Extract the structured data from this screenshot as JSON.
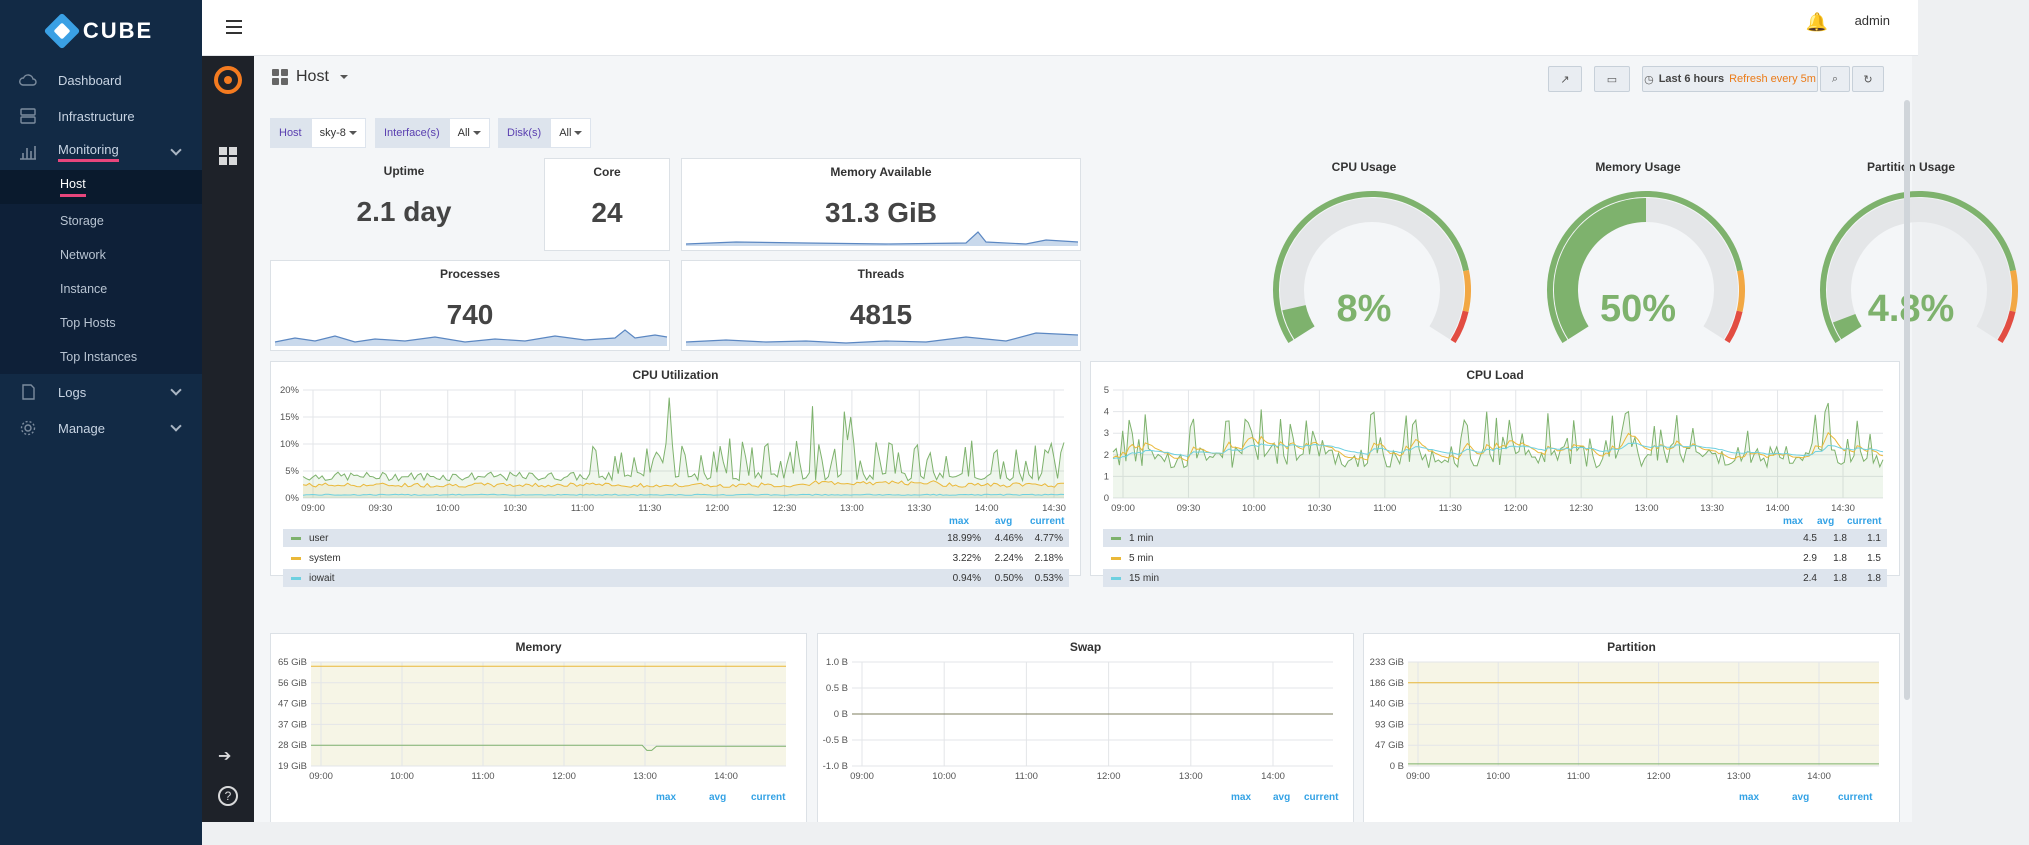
{
  "app": {
    "brand": "CUBE",
    "user": "admin"
  },
  "sidebar": {
    "items": [
      {
        "label": "Dashboard",
        "icon": "cloud-icon"
      },
      {
        "label": "Infrastructure",
        "icon": "server-icon"
      },
      {
        "label": "Monitoring",
        "icon": "chart-icon"
      },
      {
        "label": "Logs",
        "icon": "document-icon"
      },
      {
        "label": "Manage",
        "icon": "gear-icon"
      }
    ],
    "sub_items": [
      "Host",
      "Storage",
      "Network",
      "Instance",
      "Top Hosts",
      "Top Instances"
    ]
  },
  "dashboard": {
    "title": "Host",
    "time_range": "Last 6 hours",
    "refresh": "Refresh every 5m"
  },
  "variables": [
    {
      "label": "Host",
      "value": "sky-8"
    },
    {
      "label": "Interface(s)",
      "value": "All"
    },
    {
      "label": "Disk(s)",
      "value": "All"
    }
  ],
  "stats": {
    "uptime": {
      "title": "Uptime",
      "value": "2.1 day"
    },
    "core": {
      "title": "Core",
      "value": "24"
    },
    "memory_available": {
      "title": "Memory Available",
      "value": "31.3 GiB"
    },
    "processes": {
      "title": "Processes",
      "value": "740"
    },
    "threads": {
      "title": "Threads",
      "value": "4815"
    }
  },
  "gauges": [
    {
      "title": "CPU Usage",
      "value": "8%",
      "fraction": 0.08
    },
    {
      "title": "Memory Usage",
      "value": "50%",
      "fraction": 0.5
    },
    {
      "title": "Partition Usage",
      "value": "4.8%",
      "fraction": 0.048
    }
  ],
  "legend_headers": {
    "max": "max",
    "avg": "avg",
    "current": "current"
  },
  "cpu_util": {
    "title": "CPU Utilization",
    "y_ticks": [
      "20%",
      "15%",
      "10%",
      "5%",
      "0%"
    ],
    "x_ticks": [
      "09:00",
      "09:30",
      "10:00",
      "10:30",
      "11:00",
      "11:30",
      "12:00",
      "12:30",
      "13:00",
      "13:30",
      "14:00",
      "14:30"
    ],
    "legend": [
      {
        "name": "user",
        "color": "#7eb26d",
        "max": "18.99%",
        "avg": "4.46%",
        "current": "4.77%"
      },
      {
        "name": "system",
        "color": "#eab839",
        "max": "3.22%",
        "avg": "2.24%",
        "current": "2.18%"
      },
      {
        "name": "iowait",
        "color": "#6ed0e0",
        "max": "0.94%",
        "avg": "0.50%",
        "current": "0.53%"
      }
    ]
  },
  "cpu_load": {
    "title": "CPU Load",
    "y_ticks": [
      "5",
      "4",
      "3",
      "2",
      "1",
      "0"
    ],
    "x_ticks": [
      "09:00",
      "09:30",
      "10:00",
      "10:30",
      "11:00",
      "11:30",
      "12:00",
      "12:30",
      "13:00",
      "13:30",
      "14:00",
      "14:30"
    ],
    "legend": [
      {
        "name": "1 min",
        "color": "#7eb26d",
        "max": "4.5",
        "avg": "1.8",
        "current": "1.1"
      },
      {
        "name": "5 min",
        "color": "#eab839",
        "max": "2.9",
        "avg": "1.8",
        "current": "1.5"
      },
      {
        "name": "15 min",
        "color": "#6ed0e0",
        "max": "2.4",
        "avg": "1.8",
        "current": "1.8"
      }
    ]
  },
  "memory": {
    "title": "Memory",
    "y_ticks": [
      "65 GiB",
      "56 GiB",
      "47 GiB",
      "37 GiB",
      "28 GiB",
      "19 GiB"
    ],
    "x_ticks": [
      "09:00",
      "10:00",
      "11:00",
      "12:00",
      "13:00",
      "14:00"
    ]
  },
  "swap": {
    "title": "Swap",
    "y_ticks": [
      "1.0 B",
      "0.5 B",
      "0 B",
      "-0.5 B",
      "-1.0 B"
    ],
    "x_ticks": [
      "09:00",
      "10:00",
      "11:00",
      "12:00",
      "13:00",
      "14:00"
    ]
  },
  "partition": {
    "title": "Partition",
    "y_ticks": [
      "233 GiB",
      "186 GiB",
      "140 GiB",
      "93 GiB",
      "47 GiB",
      "0 B"
    ],
    "x_ticks": [
      "09:00",
      "10:00",
      "11:00",
      "12:00",
      "13:00",
      "14:00"
    ]
  }
}
